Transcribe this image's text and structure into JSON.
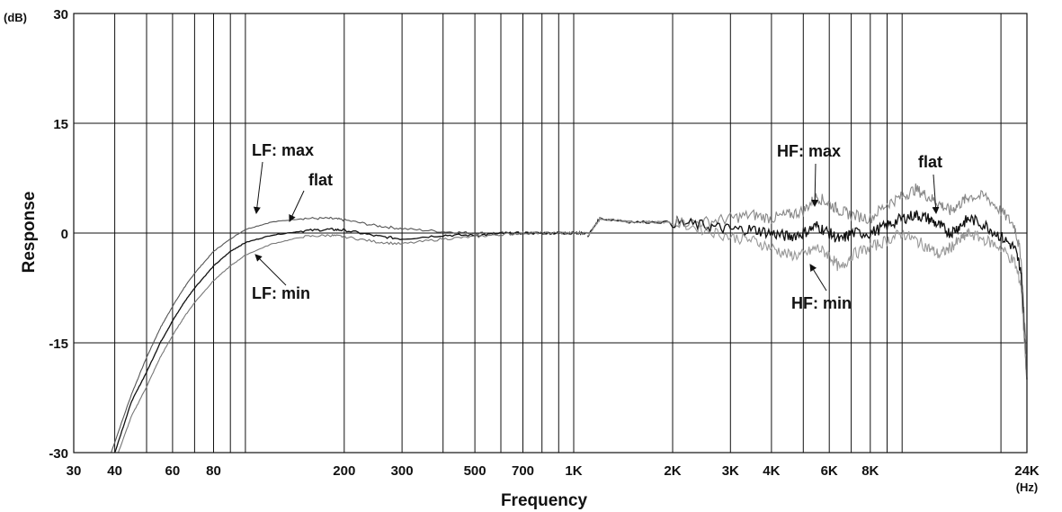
{
  "chart_data": {
    "type": "line",
    "xlabel": "Frequency",
    "ylabel": "Response",
    "x_unit": "(Hz)",
    "y_unit": "(dB)",
    "x_scale": "log",
    "xlim": [
      30,
      24000
    ],
    "ylim": [
      -30,
      30
    ],
    "grid": true,
    "x_ticks": [
      {
        "value": 30,
        "label": "30"
      },
      {
        "value": 40,
        "label": "40"
      },
      {
        "value": 60,
        "label": "60"
      },
      {
        "value": 80,
        "label": "80"
      },
      {
        "value": 200,
        "label": "200"
      },
      {
        "value": 300,
        "label": "300"
      },
      {
        "value": 500,
        "label": "500"
      },
      {
        "value": 700,
        "label": "700"
      },
      {
        "value": 1000,
        "label": "1K"
      },
      {
        "value": 2000,
        "label": "2K"
      },
      {
        "value": 3000,
        "label": "3K"
      },
      {
        "value": 4000,
        "label": "4K"
      },
      {
        "value": 6000,
        "label": "6K"
      },
      {
        "value": 8000,
        "label": "8K"
      },
      {
        "value": 24000,
        "label": "24K"
      }
    ],
    "y_ticks": [
      {
        "value": 30,
        "label": "30"
      },
      {
        "value": 15,
        "label": "15"
      },
      {
        "value": 0,
        "label": "0"
      },
      {
        "value": -15,
        "label": "-15"
      },
      {
        "value": -30,
        "label": "-30"
      }
    ],
    "x_gridlines": [
      30,
      40,
      50,
      60,
      70,
      80,
      90,
      100,
      200,
      300,
      400,
      500,
      600,
      700,
      800,
      900,
      1000,
      2000,
      3000,
      4000,
      5000,
      6000,
      7000,
      8000,
      9000,
      10000,
      20000,
      24000
    ],
    "annotations": [
      {
        "text": "LF: max",
        "points_to": "LF max curve"
      },
      {
        "text": "flat",
        "points_to": "LF flat curve"
      },
      {
        "text": "LF: min",
        "points_to": "LF min curve"
      },
      {
        "text": "HF: max",
        "points_to": "HF max curve"
      },
      {
        "text": "flat",
        "points_to": "HF flat curve"
      },
      {
        "text": "HF: min",
        "points_to": "HF min curve"
      }
    ],
    "series": [
      {
        "color": "#555555",
        "x": [
          39,
          45,
          50,
          55,
          60,
          65,
          70,
          80,
          90,
          100,
          120,
          150,
          180,
          200,
          250,
          300,
          400,
          500,
          600,
          700,
          800,
          900,
          1000,
          1100
        ],
        "y": [
          -30,
          -22,
          -17,
          -13,
          -10,
          -7.5,
          -5.5,
          -2.5,
          -0.8,
          0.5,
          1.5,
          2,
          2,
          1.8,
          1,
          0.6,
          0.2,
          0,
          0,
          0,
          0,
          0,
          0,
          0
        ]
      },
      {
        "color": "#111111",
        "x": [
          40,
          45,
          50,
          55,
          60,
          65,
          70,
          80,
          90,
          100,
          120,
          150,
          180,
          200,
          250,
          300,
          400,
          500,
          600,
          700,
          800,
          900,
          1000,
          1100
        ],
        "y": [
          -30,
          -23,
          -19,
          -15,
          -12,
          -9.5,
          -7.5,
          -4.5,
          -2.5,
          -1.3,
          -0.3,
          0.3,
          0.5,
          0.4,
          -0.4,
          -0.8,
          -0.3,
          -0.3,
          -0.1,
          0,
          0,
          0,
          0,
          0
        ]
      },
      {
        "color": "#777777",
        "x": [
          41,
          45,
          50,
          55,
          60,
          65,
          70,
          80,
          90,
          100,
          120,
          150,
          180,
          200,
          250,
          300,
          400,
          500,
          600,
          700,
          800,
          900,
          1000,
          1100
        ],
        "y": [
          -30,
          -25,
          -21,
          -17,
          -14,
          -11.5,
          -9.5,
          -6.5,
          -4.5,
          -3,
          -1.5,
          -0.5,
          -0.3,
          -0.5,
          -1.2,
          -1.5,
          -0.8,
          -0.5,
          -0.2,
          0,
          0,
          0,
          0,
          0
        ]
      },
      {
        "color": "#888888",
        "x": [
          1100,
          1200,
          1500,
          2000,
          2500,
          3000,
          3500,
          4000,
          4500,
          5000,
          5500,
          6000,
          6500,
          7000,
          8000,
          9000,
          10000,
          11000,
          12000,
          13000,
          14000,
          15000,
          16000,
          18000,
          20000,
          22000,
          23000,
          24000
        ],
        "y": [
          -0.5,
          2,
          1.5,
          1.5,
          1.5,
          2,
          2.5,
          2,
          2.5,
          3,
          5,
          4,
          3,
          2.5,
          2,
          4,
          5,
          6,
          5,
          4,
          3,
          4,
          5,
          5,
          3,
          1,
          -3,
          -18
        ]
      },
      {
        "color": "#111111",
        "x": [
          1100,
          1200,
          1500,
          2000,
          2500,
          3000,
          3500,
          4000,
          4500,
          5000,
          5500,
          6000,
          6500,
          7000,
          8000,
          9000,
          10000,
          11000,
          12000,
          13000,
          14000,
          15000,
          16000,
          18000,
          20000,
          22000,
          23000,
          24000
        ],
        "y": [
          -0.5,
          2,
          1.5,
          1.5,
          1,
          0.5,
          0.5,
          0,
          -0.5,
          0,
          1,
          0,
          -1,
          0,
          0,
          1,
          2,
          2.5,
          2,
          1,
          0,
          1,
          2,
          1,
          -0.5,
          -2,
          -5,
          -20
        ]
      },
      {
        "color": "#999999",
        "x": [
          1100,
          1200,
          1500,
          2000,
          2500,
          3000,
          3500,
          4000,
          4500,
          5000,
          5500,
          6000,
          6500,
          7000,
          8000,
          9000,
          10000,
          11000,
          12000,
          13000,
          14000,
          15000,
          16000,
          18000,
          20000,
          22000,
          23000,
          24000
        ],
        "y": [
          -0.5,
          2,
          1.5,
          1.5,
          0.5,
          -0.5,
          -1,
          -2,
          -3,
          -3,
          -2,
          -3,
          -5,
          -3,
          -2,
          -1,
          0,
          -1,
          -2,
          -3,
          -2,
          -1,
          0,
          -1,
          -2,
          -4,
          -7,
          -20
        ]
      }
    ]
  }
}
